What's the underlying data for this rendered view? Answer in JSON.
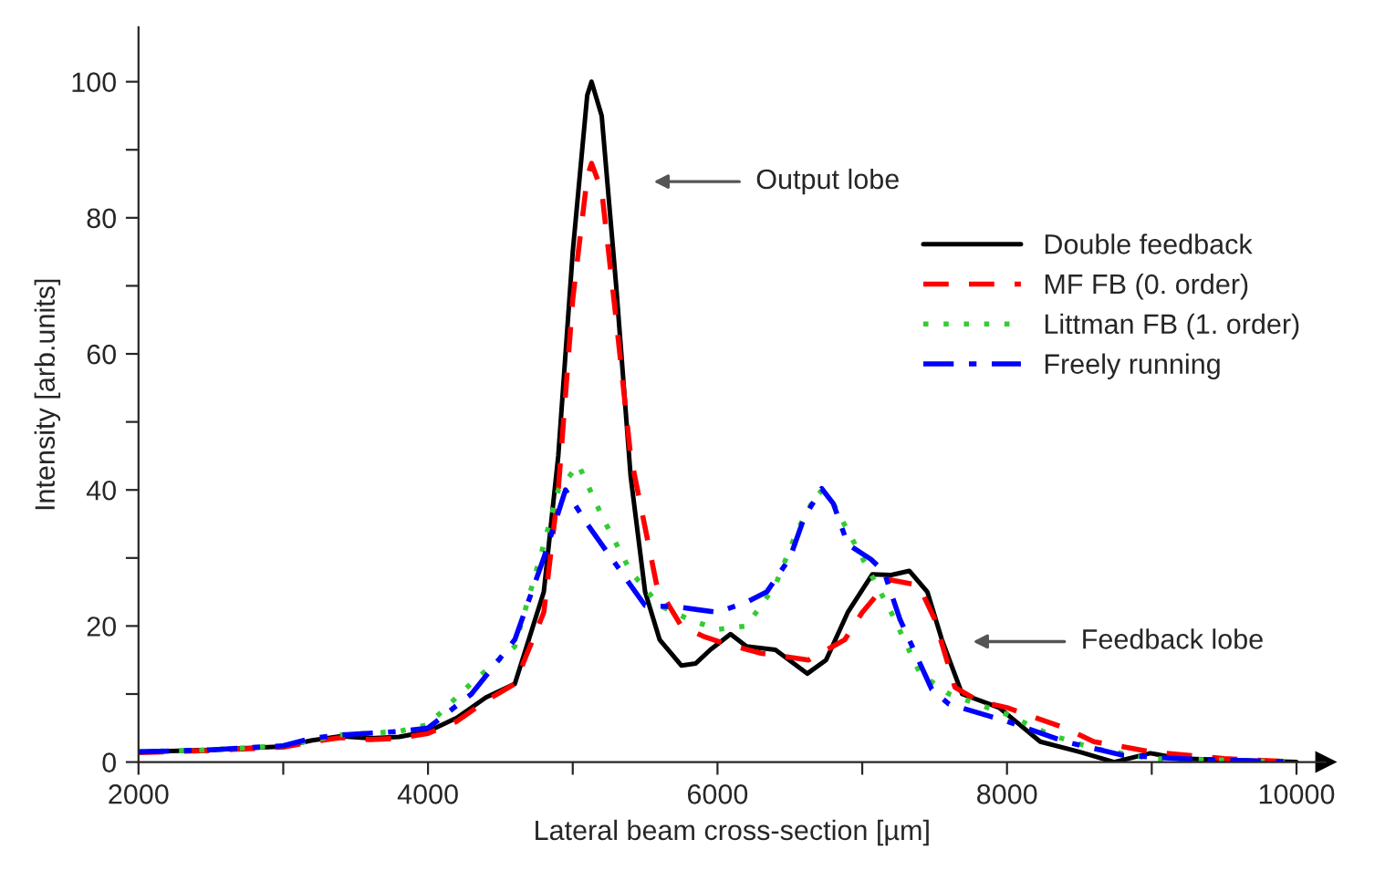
{
  "chart_data": {
    "type": "line",
    "xlabel": "Lateral beam cross-section [µm]",
    "ylabel": "Intensity [arb.units]",
    "xlim": [
      2000,
      10200
    ],
    "ylim": [
      0,
      108
    ],
    "xticks": [
      2000,
      {
        "value": 3000,
        "label": null
      },
      4000,
      {
        "value": 5000,
        "label": null
      },
      6000,
      {
        "value": 7000,
        "label": null
      },
      8000,
      {
        "value": 9000,
        "label": null
      },
      10000
    ],
    "yticks": [
      0,
      {
        "value": 10,
        "label": null
      },
      20,
      {
        "value": 30,
        "label": null
      },
      40,
      {
        "value": 50,
        "label": null
      },
      60,
      {
        "value": 70,
        "label": null
      },
      80,
      {
        "value": 90,
        "label": null
      },
      100
    ],
    "grid": false,
    "legend": "right",
    "marker": "none",
    "annotations": [
      "Output lobe",
      "Feedback lobe"
    ],
    "series": [
      {
        "name": "Double feedback",
        "color": "#000000",
        "line_style": "solid",
        "x": [
          2000,
          2500,
          3000,
          3200,
          3400,
          3600,
          3800,
          4000,
          4200,
          4400,
          4600,
          4800,
          4900,
          5000,
          5100,
          5130,
          5200,
          5300,
          5400,
          5500,
          5600,
          5750,
          5850,
          5950,
          6090,
          6200,
          6400,
          6620,
          6750,
          6900,
          7070,
          7200,
          7325,
          7450,
          7550,
          7690,
          7945,
          8230,
          8500,
          8740,
          8990,
          9200,
          9500,
          10000
        ],
        "values": [
          1.5,
          1.8,
          2.3,
          3.2,
          3.8,
          3.5,
          3.7,
          4.5,
          6.5,
          9.5,
          11.5,
          25,
          45,
          75,
          98,
          100,
          95,
          70,
          42,
          25,
          18,
          14.2,
          14.5,
          16.5,
          18.8,
          17,
          16.5,
          13,
          15,
          22,
          27.6,
          27.5,
          28.1,
          25,
          18,
          10,
          8,
          3,
          1.5,
          0,
          1.3,
          0.5,
          0.3,
          0
        ]
      },
      {
        "name": "MF FB (0. order)",
        "color": "#ff0000",
        "line_style": "dashed",
        "x": [
          2000,
          2500,
          3000,
          3200,
          3400,
          3600,
          3800,
          4000,
          4200,
          4400,
          4600,
          4800,
          4900,
          5000,
          5100,
          5130,
          5200,
          5300,
          5400,
          5580,
          5750,
          5900,
          6050,
          6300,
          6630,
          6880,
          7000,
          7190,
          7390,
          7500,
          7640,
          7800,
          8000,
          8200,
          8400,
          8600,
          9000,
          9500,
          10000
        ],
        "values": [
          1.4,
          1.7,
          2.2,
          3.0,
          3.6,
          3.3,
          3.5,
          4.2,
          6.0,
          9.0,
          11.5,
          22,
          40,
          68,
          86,
          88,
          84,
          65,
          45,
          26,
          20,
          18.5,
          17.4,
          16,
          15,
          18,
          22,
          26.8,
          26,
          21,
          11,
          9,
          8,
          6.5,
          5,
          3,
          1.5,
          0.5,
          0
        ]
      },
      {
        "name": "Littman FB (1. order)",
        "color": "#33cc33",
        "line_style": "dotted",
        "x": [
          2000,
          2500,
          3000,
          3400,
          3800,
          4000,
          4320,
          4600,
          4800,
          4900,
          5040,
          5205,
          5400,
          5600,
          5800,
          6000,
          6200,
          6400,
          6550,
          6700,
          6800,
          7000,
          7200,
          7400,
          7600,
          8000,
          8300,
          8600,
          9000,
          9500,
          10000
        ],
        "values": [
          1.5,
          1.8,
          2.4,
          4.0,
          4.5,
          5.5,
          12,
          17,
          32,
          40,
          43.7,
          36,
          28,
          23,
          21,
          19.5,
          20,
          26,
          34,
          40,
          38,
          30,
          22,
          13,
          10,
          7,
          4,
          2,
          0.5,
          0.3,
          0
        ]
      },
      {
        "name": "Freely running",
        "color": "#0000ff",
        "line_style": "dashdot",
        "x": [
          2000,
          2500,
          3000,
          3200,
          3400,
          3800,
          4000,
          4300,
          4600,
          4800,
          4950,
          5100,
          5300,
          5500,
          5730,
          6000,
          6200,
          6340,
          6500,
          6600,
          6720,
          6800,
          6900,
          7060,
          7150,
          7260,
          7480,
          7600,
          8000,
          8400,
          8800,
          9200,
          10000
        ],
        "values": [
          1.5,
          1.8,
          2.4,
          3.5,
          4.0,
          4.5,
          5.0,
          10,
          18,
          30,
          40,
          35,
          29,
          23,
          22.8,
          22,
          23.5,
          25,
          30,
          36,
          40.2,
          38,
          32,
          29.8,
          28,
          21,
          10.7,
          8.5,
          6,
          3,
          1,
          0.5,
          0
        ]
      }
    ]
  }
}
